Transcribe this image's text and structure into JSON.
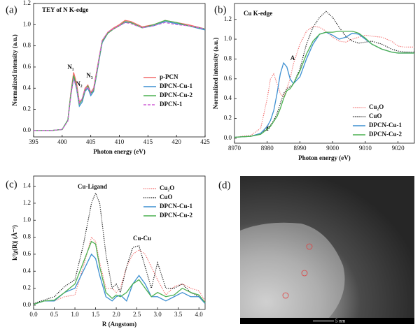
{
  "chart_data": [
    {
      "type": "line",
      "panel_label": "(a)",
      "title": "TEY of N K-edge",
      "xlabel": "Photon energy (eV)",
      "ylabel": "Normalized intensity (a.u.)",
      "annotations": [
        "N₁",
        "N₂",
        "N₃"
      ],
      "x": [
        395,
        398,
        400,
        401,
        401.5,
        402,
        402.5,
        403,
        403.5,
        404,
        404.5,
        405,
        405.5,
        406,
        406.5,
        407,
        408,
        409,
        410,
        411,
        412,
        414,
        416,
        418,
        420,
        422,
        425
      ],
      "series": [
        {
          "name": "p-PCN",
          "color": "#f26b6b",
          "style": "solid",
          "values": [
            0,
            0,
            0.01,
            0.1,
            0.35,
            0.55,
            0.45,
            0.27,
            0.3,
            0.4,
            0.43,
            0.36,
            0.4,
            0.55,
            0.7,
            0.85,
            0.93,
            0.97,
            1.0,
            1.04,
            1.03,
            0.98,
            1.0,
            1.04,
            1.02,
            1.0,
            0.96
          ]
        },
        {
          "name": "DPCN-Cu-1",
          "color": "#3d8fd1",
          "style": "solid",
          "values": [
            0,
            0,
            0.01,
            0.1,
            0.33,
            0.5,
            0.4,
            0.23,
            0.27,
            0.37,
            0.4,
            0.33,
            0.37,
            0.52,
            0.68,
            0.83,
            0.92,
            0.96,
            0.99,
            1.02,
            1.02,
            0.97,
            0.99,
            1.03,
            1.01,
            0.99,
            0.95
          ]
        },
        {
          "name": "DPCN-Cu-2",
          "color": "#4cb050",
          "style": "solid",
          "values": [
            0,
            0,
            0.01,
            0.1,
            0.34,
            0.52,
            0.42,
            0.25,
            0.29,
            0.38,
            0.42,
            0.35,
            0.38,
            0.53,
            0.69,
            0.84,
            0.92,
            0.96,
            0.99,
            1.03,
            1.02,
            0.97,
            1.0,
            1.04,
            1.02,
            0.99,
            0.96
          ]
        },
        {
          "name": "DPCN-1",
          "color": "#cf5fd6",
          "style": "dashed",
          "values": [
            0,
            0,
            0.01,
            0.09,
            0.32,
            0.49,
            0.41,
            0.26,
            0.3,
            0.39,
            0.41,
            0.35,
            0.39,
            0.54,
            0.7,
            0.85,
            0.93,
            0.96,
            0.99,
            1.02,
            1.01,
            0.97,
            0.99,
            1.02,
            1.0,
            0.99,
            0.96
          ]
        }
      ],
      "xlim": [
        395,
        425
      ],
      "xticks": [
        395,
        400,
        405,
        410,
        415,
        420,
        425
      ],
      "ylim": [
        -0.06,
        1.2
      ],
      "yticks": [
        {
          "value": 0,
          "label": "0.0"
        },
        0.2,
        0.4,
        0.6,
        0.8,
        {
          "value": 1,
          "label": "1.0"
        },
        1.2
      ],
      "legend": "center right"
    },
    {
      "type": "line",
      "panel_label": "(b)",
      "title": "Cu K-edge",
      "xlabel": "Photon energy (eV)",
      "ylabel": "Normalized intensity (a.u.)",
      "annotations": [
        "A",
        "P"
      ],
      "x": [
        8970,
        8975,
        8978,
        8980,
        8981,
        8982,
        8983,
        8984,
        8985,
        8986,
        8987,
        8988,
        8990,
        8992,
        8994,
        8996,
        8998,
        9000,
        9002,
        9004,
        9006,
        9008,
        9010,
        9012,
        9015,
        9018,
        9020,
        9022,
        9025
      ],
      "series": [
        {
          "name": "Cu₂O",
          "color": "#f26b6b",
          "style": "dotted",
          "values": [
            0.01,
            0.03,
            0.1,
            0.4,
            0.6,
            0.65,
            0.55,
            0.45,
            0.42,
            0.5,
            0.6,
            0.75,
            0.95,
            1.08,
            1.13,
            1.12,
            1.08,
            1.02,
            0.98,
            0.97,
            1.0,
            1.02,
            1.04,
            1.03,
            1.02,
            0.98,
            0.93,
            0.92,
            0.92
          ]
        },
        {
          "name": "CuO",
          "color": "#111111",
          "style": "dotted",
          "values": [
            0.01,
            0.02,
            0.05,
            0.1,
            0.13,
            0.18,
            0.25,
            0.35,
            0.45,
            0.5,
            0.52,
            0.55,
            0.7,
            0.95,
            1.12,
            1.22,
            1.28,
            1.22,
            1.12,
            1.03,
            0.98,
            0.96,
            0.97,
            0.98,
            0.95,
            0.9,
            0.88,
            0.87,
            0.87
          ]
        },
        {
          "name": "DPCN-Cu-1",
          "color": "#3d8fd1",
          "style": "solid",
          "values": [
            0.01,
            0.02,
            0.05,
            0.12,
            0.18,
            0.28,
            0.45,
            0.65,
            0.76,
            0.72,
            0.6,
            0.55,
            0.62,
            0.8,
            0.95,
            1.05,
            1.07,
            1.04,
            1.0,
            1.02,
            1.06,
            1.05,
            1.0,
            0.95,
            0.9,
            0.87,
            0.86,
            0.86,
            0.86
          ]
        },
        {
          "name": "DPCN-Cu-2",
          "color": "#4cb050",
          "style": "solid",
          "values": [
            0.01,
            0.02,
            0.04,
            0.09,
            0.12,
            0.17,
            0.22,
            0.3,
            0.4,
            0.48,
            0.5,
            0.55,
            0.68,
            0.85,
            0.98,
            1.05,
            1.07,
            1.07,
            1.08,
            1.08,
            1.08,
            1.06,
            1.01,
            0.95,
            0.9,
            0.87,
            0.86,
            0.86,
            0.86
          ]
        }
      ],
      "xlim": [
        8970,
        9025
      ],
      "xticks": [
        8970,
        8980,
        8990,
        9000,
        9010,
        9020
      ],
      "ylim": [
        -0.05,
        1.36
      ],
      "yticks": [
        {
          "value": 0,
          "label": "0.0"
        },
        0.2,
        0.4,
        0.6,
        0.8,
        {
          "value": 1,
          "label": "1.0"
        },
        1.2
      ],
      "legend": "lower right"
    },
    {
      "type": "line",
      "panel_label": "(c)",
      "xlabel": "R (Angstom)",
      "ylabel": "k²|χ(R)| (Å⁻³)",
      "annotations": [
        "Cu-Ligand",
        "Cu-Cu"
      ],
      "x": [
        0,
        0.25,
        0.5,
        0.75,
        1.0,
        1.2,
        1.4,
        1.5,
        1.6,
        1.75,
        1.9,
        2.0,
        2.1,
        2.25,
        2.4,
        2.55,
        2.7,
        2.85,
        3.0,
        3.2,
        3.4,
        3.6,
        3.8,
        4.0,
        4.15
      ],
      "series": [
        {
          "name": "Cu₂O",
          "color": "#f26b6b",
          "style": "dotted",
          "values": [
            0.02,
            0.05,
            0.05,
            0.1,
            0.12,
            0.45,
            0.8,
            0.75,
            0.5,
            0.2,
            0.2,
            0.15,
            0.2,
            0.45,
            0.6,
            0.65,
            0.6,
            0.45,
            0.3,
            0.12,
            0.22,
            0.25,
            0.2,
            0.17,
            0.05
          ]
        },
        {
          "name": "CuO",
          "color": "#111111",
          "style": "dotted",
          "values": [
            0.02,
            0.06,
            0.1,
            0.22,
            0.3,
            0.7,
            1.2,
            1.32,
            1.2,
            0.6,
            0.2,
            0.25,
            0.15,
            0.45,
            0.68,
            0.7,
            0.45,
            0.2,
            0.5,
            0.2,
            0.2,
            0.25,
            0.15,
            0.1,
            0.02
          ]
        },
        {
          "name": "DPCN-Cu-1",
          "color": "#3d8fd1",
          "style": "solid",
          "values": [
            0.01,
            0.05,
            0.05,
            0.15,
            0.2,
            0.4,
            0.6,
            0.55,
            0.35,
            0.1,
            0.05,
            0.1,
            0.12,
            0.05,
            0.25,
            0.35,
            0.25,
            0.1,
            0.1,
            0.05,
            0.1,
            0.15,
            0.1,
            0.1,
            0.02
          ]
        },
        {
          "name": "DPCN-Cu-2",
          "color": "#4cb050",
          "style": "solid",
          "values": [
            0.01,
            0.05,
            0.06,
            0.15,
            0.25,
            0.5,
            0.75,
            0.72,
            0.45,
            0.15,
            0.08,
            0.12,
            0.1,
            0.15,
            0.25,
            0.3,
            0.2,
            0.1,
            0.15,
            0.1,
            0.12,
            0.2,
            0.15,
            0.12,
            0.03
          ]
        }
      ],
      "xlim": [
        0,
        4.15
      ],
      "xticks": [
        {
          "value": 0,
          "label": "0.0"
        },
        0.5,
        {
          "value": 1,
          "label": "1.0"
        },
        1.5,
        {
          "value": 2,
          "label": "2.0"
        },
        2.5,
        {
          "value": 3,
          "label": "3.0"
        },
        3.5,
        {
          "value": 4,
          "label": "4.0"
        }
      ],
      "ylim": [
        -0.05,
        1.52
      ],
      "yticks": [
        {
          "value": 0,
          "label": "0.0"
        },
        0.2,
        0.4,
        0.6,
        0.8,
        {
          "value": 1,
          "label": "1.0"
        },
        1.2,
        1.4
      ],
      "legend": "upper right"
    }
  ],
  "image": {
    "panel_label": "(d)",
    "scale_bar": "5 nm"
  }
}
